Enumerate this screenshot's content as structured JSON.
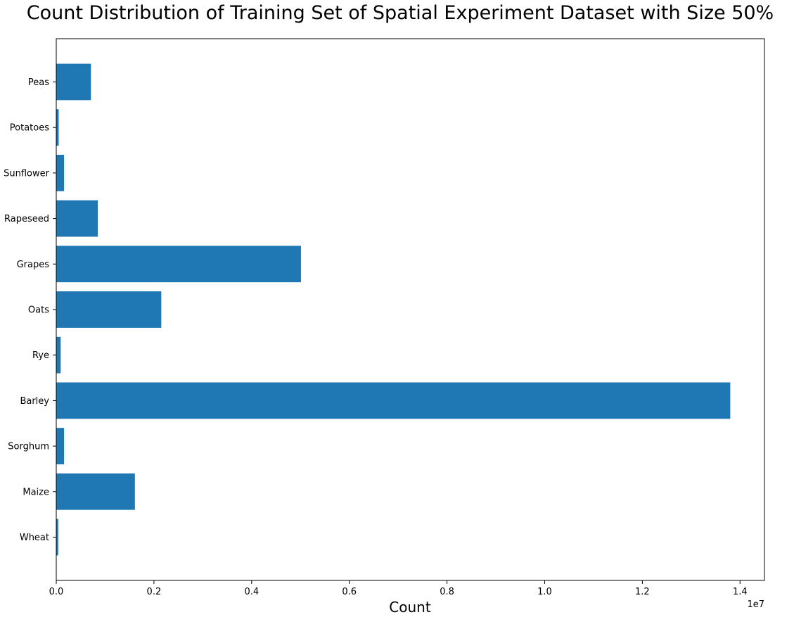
{
  "chart_data": {
    "type": "bar",
    "orientation": "horizontal",
    "title": "Count Distribution of Training Set of Spatial Experiment Dataset with Size 50%",
    "xlabel": "Count",
    "ylabel": "",
    "x_offset_label": "1e7",
    "xlim": [
      0,
      14500000
    ],
    "xticks": [
      0,
      2000000,
      4000000,
      6000000,
      8000000,
      10000000,
      12000000,
      14000000
    ],
    "xtick_labels": [
      "0.0",
      "0.2",
      "0.4",
      "0.6",
      "0.8",
      "1.0",
      "1.2",
      "1.4"
    ],
    "categories": [
      "Wheat",
      "Maize",
      "Sorghum",
      "Barley",
      "Rye",
      "Oats",
      "Grapes",
      "Rapeseed",
      "Sunflower",
      "Potatoes",
      "Peas"
    ],
    "values": [
      40000,
      1610000,
      160000,
      13800000,
      90000,
      2150000,
      5010000,
      850000,
      160000,
      50000,
      710000
    ],
    "bar_color": "#1f77b4",
    "grid": false,
    "legend": "none"
  }
}
